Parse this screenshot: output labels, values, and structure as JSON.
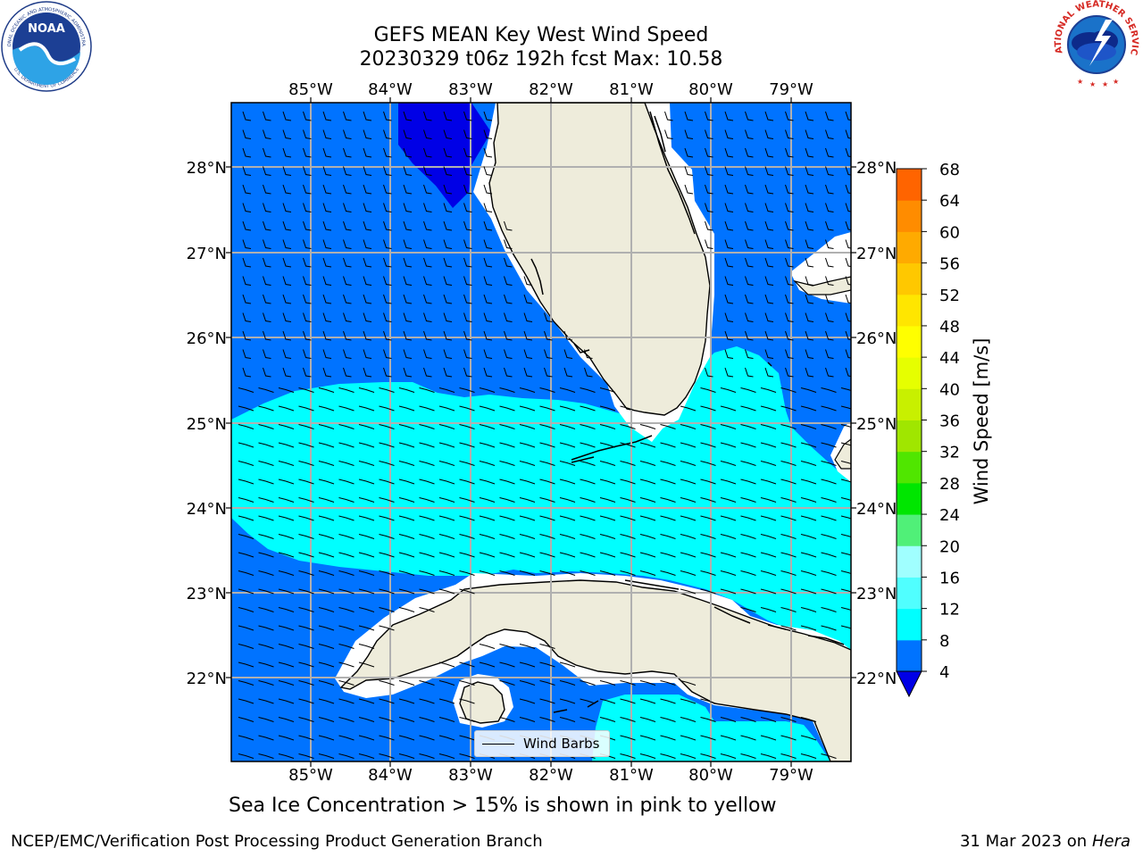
{
  "title_line1": "GEFS MEAN Key West Wind Speed",
  "title_line2": "20230329 t06z 192h fcst   Max: 10.58",
  "map": {
    "lon_labels": [
      "85°W",
      "84°W",
      "83°W",
      "82°W",
      "81°W",
      "80°W",
      "79°W"
    ],
    "lat_labels": [
      "28°N",
      "27°N",
      "26°N",
      "25°N",
      "24°N",
      "23°N",
      "22°N"
    ],
    "extent": {
      "lon_min": -86.0,
      "lon_max": -78.25,
      "lat_min": 21.0,
      "lat_max": 28.8
    },
    "colors": {
      "land": "#eeecdb",
      "bin_4_8": "#0073ff",
      "bin_8_12": "#00ffff",
      "below_4": "#0000e6"
    }
  },
  "colorbar": {
    "label": "Wind Speed [m/s]",
    "ticks": [
      "4",
      "8",
      "12",
      "16",
      "20",
      "24",
      "28",
      "32",
      "36",
      "40",
      "44",
      "48",
      "52",
      "56",
      "60",
      "64",
      "68"
    ],
    "colors": [
      "#0073ff",
      "#00ffff",
      "#50ffff",
      "#a0ffff",
      "#50f078",
      "#00e600",
      "#50e600",
      "#a0e600",
      "#c8f000",
      "#e6ff00",
      "#ffff00",
      "#ffe600",
      "#ffc800",
      "#ffaa00",
      "#ff8c00",
      "#ff6400",
      "#ff3c00",
      "#ff0000"
    ],
    "under_color": "#0000e6"
  },
  "legend": {
    "label": "Wind Barbs"
  },
  "note": "Sea Ice Concentration > 15% is shown in pink to yellow",
  "footer": {
    "left": "NCEP/EMC/Verification Post Processing Product Generation Branch",
    "date": "31 Mar 2023 on",
    "host": "Hera"
  },
  "logos": {
    "noaa": {
      "text": "NOAA",
      "ring_top": "NATIONAL OCEANIC AND ATMOSPHERIC ADMINISTRATION",
      "ring_bottom": "U.S. DEPARTMENT OF COMMERCE"
    },
    "nws": {
      "ring_text": "NATIONAL WEATHER SERVICE"
    }
  }
}
